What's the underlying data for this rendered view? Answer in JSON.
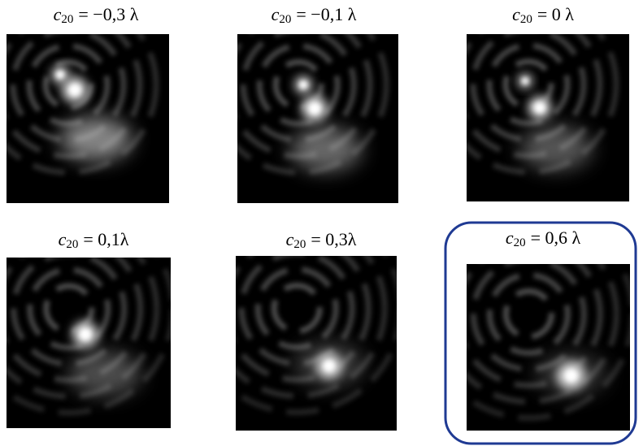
{
  "panels": [
    {
      "var": "c",
      "sub": "20",
      "rhs": "= −0,3 λ"
    },
    {
      "var": "c",
      "sub": "20",
      "rhs": "= −0,1 λ"
    },
    {
      "var": "c",
      "sub": "20",
      "rhs": "= 0 λ"
    },
    {
      "var": "c",
      "sub": "20",
      "rhs": "= 0,1λ"
    },
    {
      "var": "c",
      "sub": "20",
      "rhs": "= 0,3λ"
    },
    {
      "var": "c",
      "sub": "20",
      "rhs": "= 0,6 λ"
    }
  ]
}
